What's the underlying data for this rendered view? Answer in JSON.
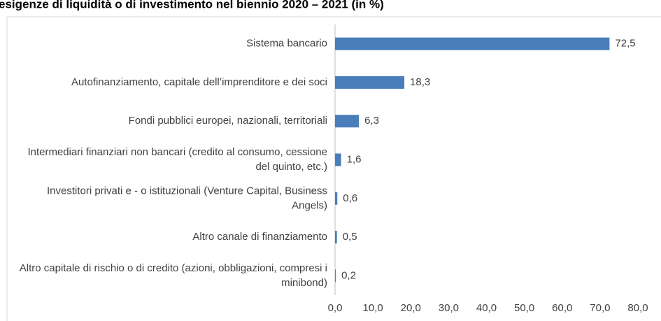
{
  "chart_data": {
    "type": "bar",
    "orientation": "horizontal",
    "title": "esigenze di liquidità o di investimento nel biennio 2020 – 2021 (in %)",
    "categories": [
      "Sistema bancario",
      "Autofinanziamento, capitale dell’imprenditore e dei soci",
      "Fondi pubblici europei, nazionali, territoriali",
      "Intermediari finanziari non bancari (credito al consumo, cessione del quinto, etc.)",
      "Investitori privati e - o istituzionali (Venture Capital, Business Angels)",
      "Altro canale di finanziamento",
      "Altro capitale di rischio o di credito (azioni, obbligazioni, compresi i minibond)"
    ],
    "values": [
      72.5,
      18.3,
      6.3,
      1.6,
      0.6,
      0.5,
      0.2
    ],
    "value_labels": [
      "72,5",
      "18,3",
      "6,3",
      "1,6",
      "0,6",
      "0,5",
      "0,2"
    ],
    "color": "#4a7ebb",
    "xlim": [
      0,
      80
    ],
    "xticks": [
      {
        "value": 0,
        "label": "0,0"
      },
      {
        "value": 10,
        "label": "10,0"
      },
      {
        "value": 20,
        "label": "20,0"
      },
      {
        "value": 30,
        "label": "30,0"
      },
      {
        "value": 40,
        "label": "40,0"
      },
      {
        "value": 50,
        "label": "50,0"
      },
      {
        "value": 60,
        "label": "60,0"
      },
      {
        "value": 70,
        "label": "70,0"
      },
      {
        "value": 80,
        "label": "80,0"
      }
    ]
  }
}
